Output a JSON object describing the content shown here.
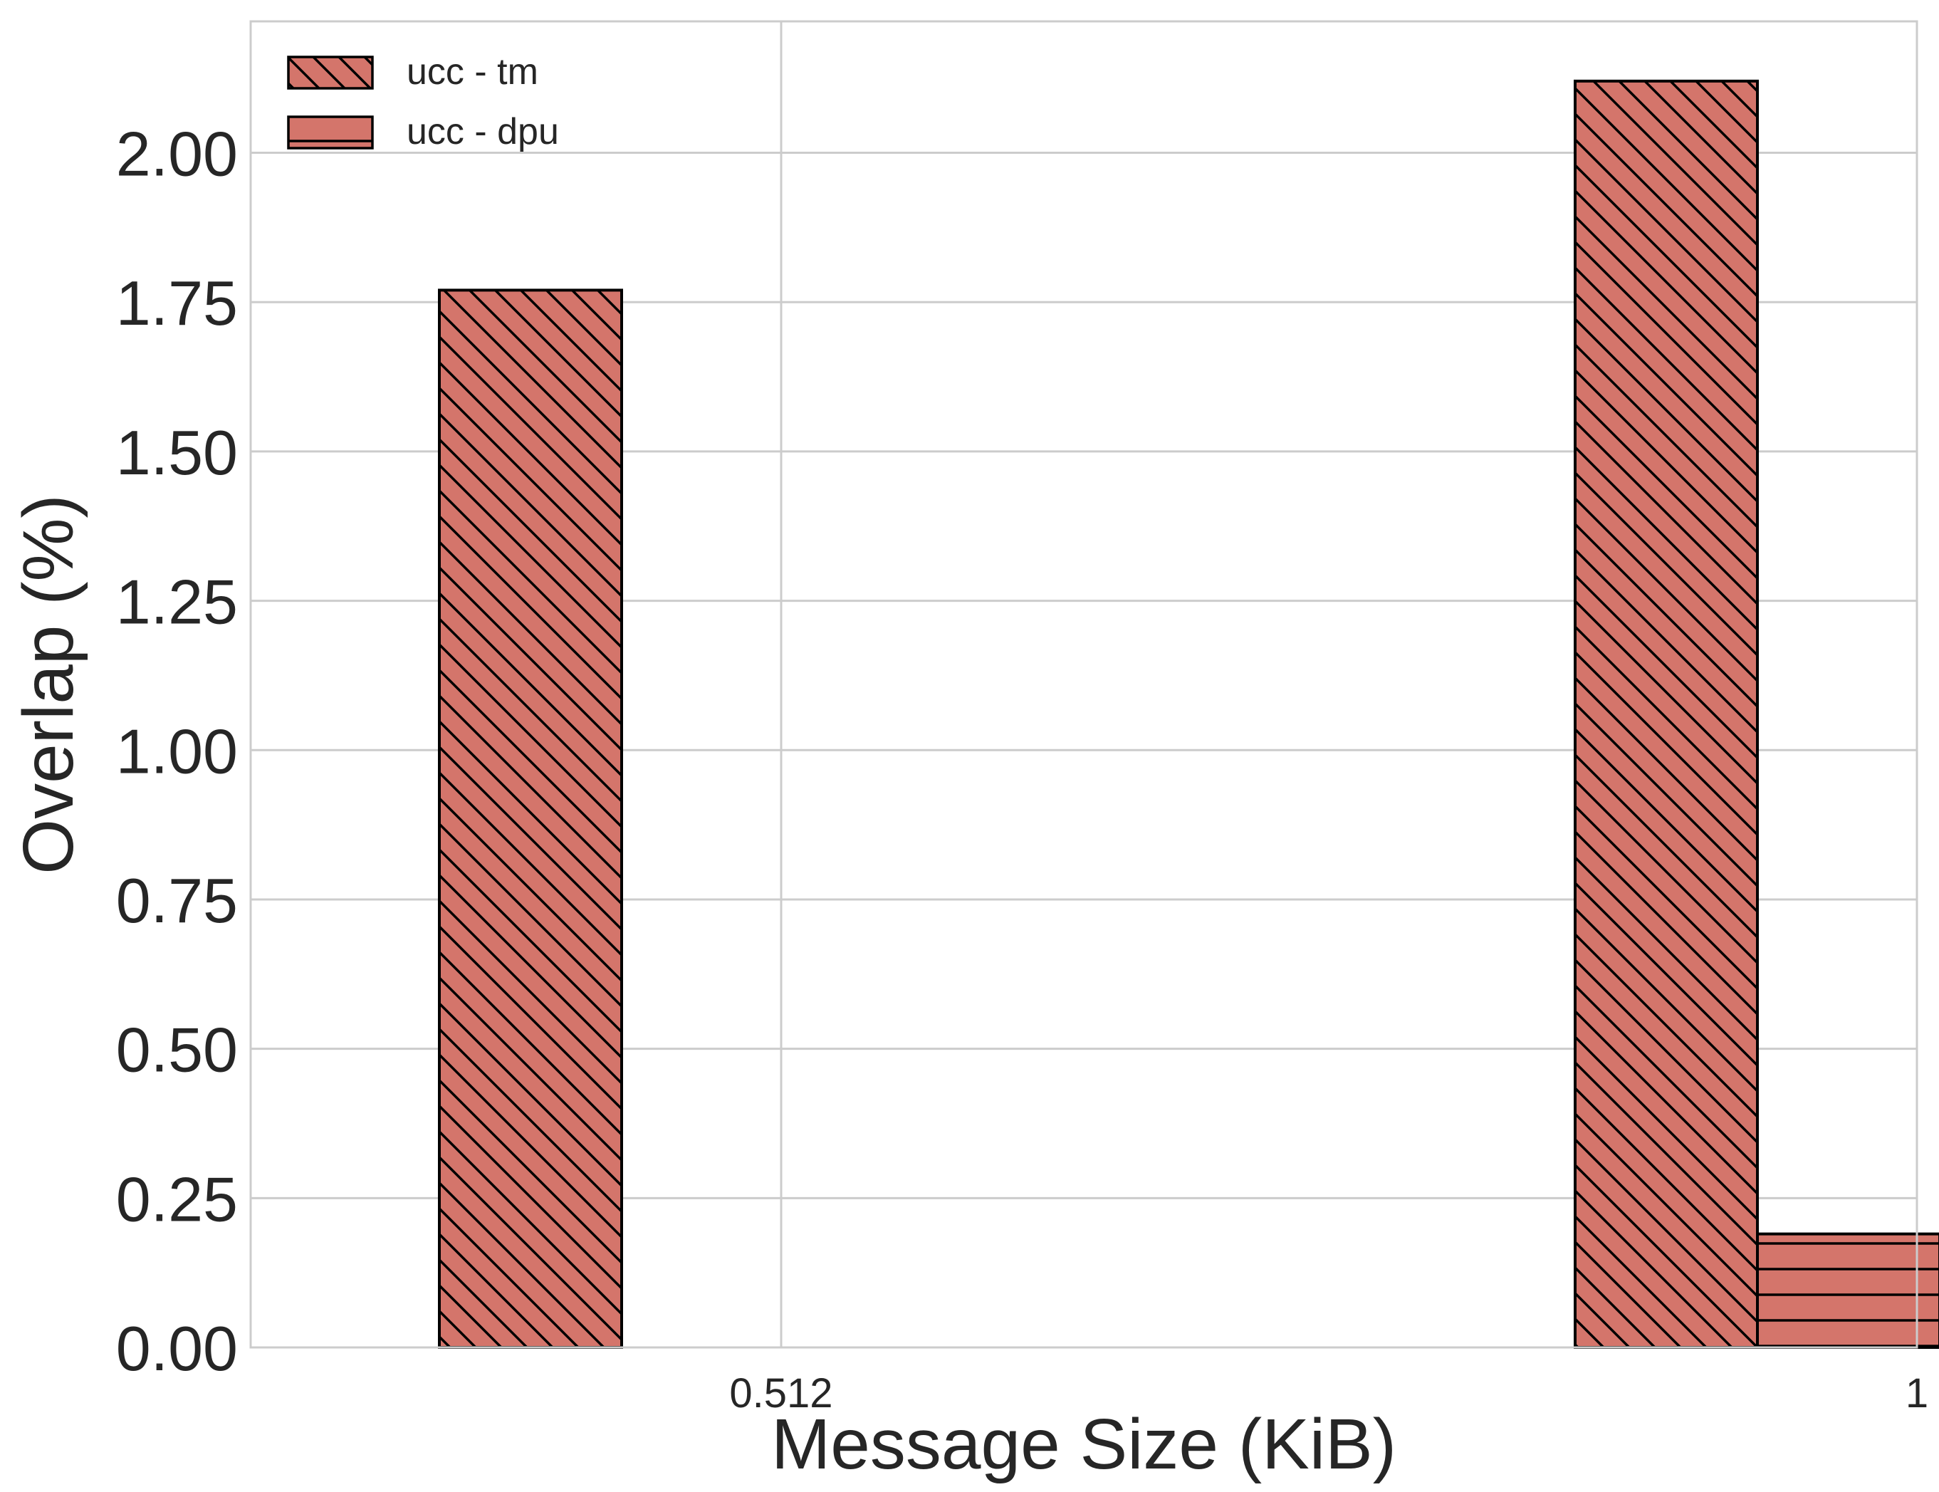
{
  "chart_data": {
    "type": "bar",
    "xlabel": "Message Size (KiB)",
    "ylabel": "Overlap (%)",
    "categories": [
      "0.512",
      "1"
    ],
    "ylim": [
      0,
      2.22
    ],
    "yticks": [
      "0.00",
      "0.25",
      "0.50",
      "0.75",
      "1.00",
      "1.25",
      "1.50",
      "1.75",
      "2.00"
    ],
    "grid": true,
    "legend_position": "top-left",
    "series": [
      {
        "name": "ucc - tm",
        "values": [
          1.77,
          2.12
        ],
        "color": "#d4756b",
        "hatch": "diagonal"
      },
      {
        "name": "ucc - dpu",
        "values": [
          0.0,
          0.19
        ],
        "color": "#d4756b",
        "hatch": "horizontal"
      }
    ]
  }
}
